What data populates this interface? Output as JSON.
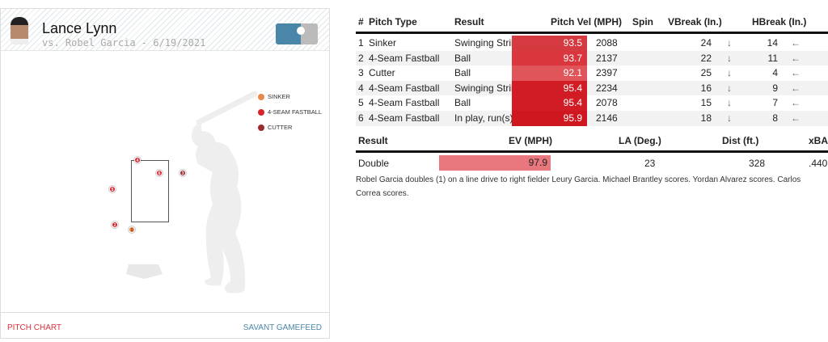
{
  "header": {
    "pitcher": "Lance Lynn",
    "matchup": "vs. Robel Garcia - 6/19/2021"
  },
  "legend": [
    {
      "label": "SINKER",
      "color": "#e8884a"
    },
    {
      "label": "4-SEAM FASTBALL",
      "color": "#d8232a"
    },
    {
      "label": "CUTTER",
      "color": "#9c2b2b"
    }
  ],
  "pitch_marks": [
    {
      "n": "1",
      "type": "Sinker"
    },
    {
      "n": "2",
      "type": "4-Seam Fastball"
    },
    {
      "n": "3",
      "type": "Cutter"
    },
    {
      "n": "4",
      "type": "4-Seam Fastball"
    },
    {
      "n": "5",
      "type": "4-Seam Fastball"
    },
    {
      "n": "6",
      "type": "4-Seam Fastball"
    }
  ],
  "footer": {
    "left": "PITCH CHART",
    "right": "SAVANT GAMEFEED"
  },
  "pitch_table": {
    "headers": [
      "#",
      "Pitch Type",
      "Result",
      "Pitch Vel (MPH)",
      "Spin",
      "VBreak (In.)",
      "HBreak (In.)"
    ],
    "rows": [
      {
        "n": "1",
        "type": "Sinker",
        "result": "Swinging Strike",
        "vel": "93.5",
        "spin": "2088",
        "vb": "24",
        "hb": "14",
        "vcolor": "#d43a40"
      },
      {
        "n": "2",
        "type": "4-Seam Fastball",
        "result": "Ball",
        "vel": "93.7",
        "spin": "2137",
        "vb": "22",
        "hb": "11",
        "vcolor": "#d9363e"
      },
      {
        "n": "3",
        "type": "Cutter",
        "result": "Ball",
        "vel": "92.1",
        "spin": "2397",
        "vb": "25",
        "hb": "4",
        "vcolor": "#e0555a"
      },
      {
        "n": "4",
        "type": "4-Seam Fastball",
        "result": "Swinging Strike",
        "vel": "95.4",
        "spin": "2234",
        "vb": "16",
        "hb": "9",
        "vcolor": "#d11c25"
      },
      {
        "n": "5",
        "type": "4-Seam Fastball",
        "result": "Ball",
        "vel": "95.4",
        "spin": "2078",
        "vb": "15",
        "hb": "7",
        "vcolor": "#d11c25"
      },
      {
        "n": "6",
        "type": "4-Seam Fastball",
        "result": "In play, run(s)",
        "vel": "95.9",
        "spin": "2146",
        "vb": "18",
        "hb": "8",
        "vcolor": "#cf1720"
      }
    ],
    "down_arrow": "↓",
    "left_arrow": "←"
  },
  "result_table": {
    "headers": [
      "Result",
      "EV (MPH)",
      "LA (Deg.)",
      "Dist (ft.)",
      "xBA"
    ],
    "row": {
      "result": "Double",
      "ev": "97.9",
      "la": "23",
      "dist": "328",
      "xba": ".440",
      "ev_color": "#e8787e"
    },
    "description": "Robel Garcia doubles (1) on a line drive to right fielder Leury Garcia. Michael Brantley scores. Yordan Alvarez scores. Carlos Correa scores."
  }
}
